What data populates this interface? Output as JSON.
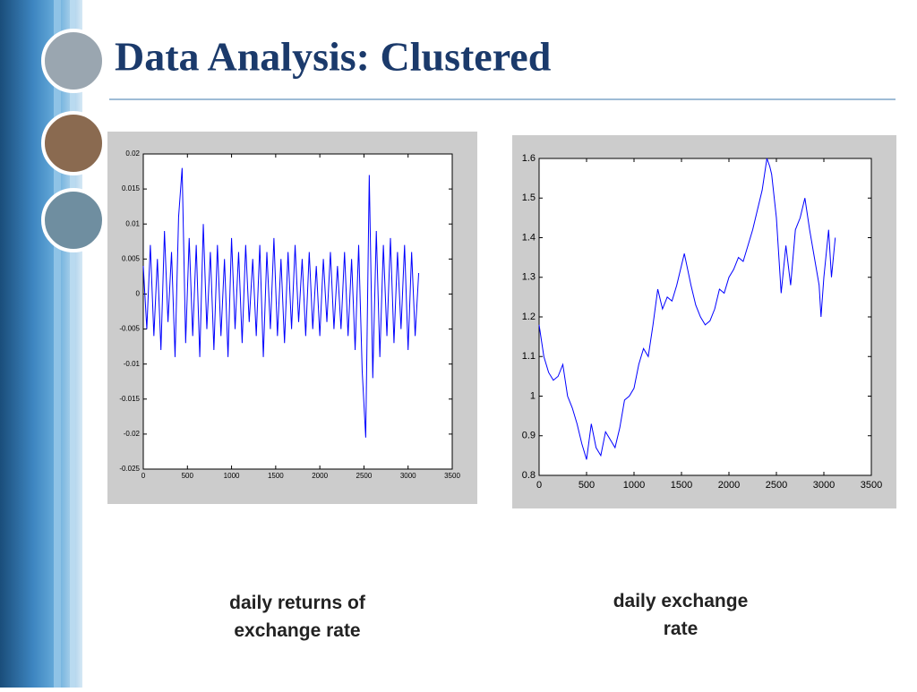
{
  "title": "Data Analysis: Clustered",
  "chart_data": [
    {
      "type": "line",
      "caption": "daily returns of exchange rate",
      "x": [
        0,
        40,
        80,
        120,
        160,
        200,
        240,
        280,
        320,
        360,
        400,
        440,
        480,
        520,
        560,
        600,
        640,
        680,
        720,
        760,
        800,
        840,
        880,
        920,
        960,
        1000,
        1040,
        1080,
        1120,
        1160,
        1200,
        1240,
        1280,
        1320,
        1360,
        1400,
        1440,
        1480,
        1520,
        1560,
        1600,
        1640,
        1680,
        1720,
        1760,
        1800,
        1840,
        1880,
        1920,
        1960,
        2000,
        2040,
        2080,
        2120,
        2160,
        2200,
        2240,
        2280,
        2320,
        2360,
        2400,
        2440,
        2480,
        2520,
        2560,
        2600,
        2640,
        2680,
        2720,
        2760,
        2800,
        2840,
        2880,
        2920,
        2960,
        3000,
        3040,
        3080,
        3120
      ],
      "series": [
        {
          "color": "#0000ff",
          "values": [
            0.004,
            -0.005,
            0.007,
            -0.006,
            0.005,
            -0.008,
            0.009,
            -0.004,
            0.006,
            -0.009,
            0.011,
            0.018,
            -0.007,
            0.008,
            -0.006,
            0.007,
            -0.009,
            0.01,
            -0.005,
            0.006,
            -0.008,
            0.007,
            -0.006,
            0.005,
            -0.009,
            0.008,
            -0.005,
            0.006,
            -0.007,
            0.007,
            -0.004,
            0.005,
            -0.006,
            0.007,
            -0.009,
            0.006,
            -0.005,
            0.008,
            -0.006,
            0.005,
            -0.007,
            0.006,
            -0.005,
            0.007,
            -0.004,
            0.005,
            -0.006,
            0.006,
            -0.005,
            0.004,
            -0.006,
            0.005,
            -0.004,
            0.006,
            -0.005,
            0.004,
            -0.005,
            0.006,
            -0.006,
            0.005,
            -0.008,
            0.007,
            -0.011,
            -0.0205,
            0.017,
            -0.012,
            0.009,
            -0.009,
            0.007,
            -0.006,
            0.008,
            -0.007,
            0.006,
            -0.005,
            0.007,
            -0.008,
            0.006,
            -0.006,
            0.003
          ]
        }
      ],
      "xlim": [
        0,
        3500
      ],
      "xticks": [
        0,
        500,
        1000,
        1500,
        2000,
        2500,
        3000,
        3500
      ],
      "ylim": [
        -0.025,
        0.02
      ],
      "yticks": [
        -0.025,
        -0.02,
        -0.015,
        -0.01,
        -0.005,
        0,
        0.005,
        0.01,
        0.015,
        0.02
      ]
    },
    {
      "type": "line",
      "caption": "daily exchange rate",
      "x": [
        0,
        50,
        100,
        150,
        200,
        250,
        300,
        350,
        400,
        450,
        500,
        550,
        600,
        650,
        700,
        750,
        800,
        850,
        900,
        950,
        1000,
        1050,
        1100,
        1150,
        1200,
        1250,
        1300,
        1350,
        1400,
        1450,
        1500,
        1530,
        1600,
        1650,
        1700,
        1750,
        1800,
        1850,
        1900,
        1950,
        2000,
        2050,
        2100,
        2150,
        2200,
        2250,
        2300,
        2350,
        2400,
        2430,
        2450,
        2500,
        2550,
        2600,
        2650,
        2700,
        2750,
        2800,
        2850,
        2900,
        2950,
        2970,
        3000,
        3050,
        3080,
        3120
      ],
      "series": [
        {
          "color": "#0000ff",
          "values": [
            1.18,
            1.1,
            1.06,
            1.04,
            1.05,
            1.08,
            1.0,
            0.97,
            0.93,
            0.88,
            0.84,
            0.93,
            0.87,
            0.85,
            0.91,
            0.89,
            0.87,
            0.92,
            0.99,
            1.0,
            1.02,
            1.08,
            1.12,
            1.1,
            1.18,
            1.27,
            1.22,
            1.25,
            1.24,
            1.28,
            1.33,
            1.36,
            1.28,
            1.23,
            1.2,
            1.18,
            1.19,
            1.22,
            1.27,
            1.26,
            1.3,
            1.32,
            1.35,
            1.34,
            1.38,
            1.42,
            1.47,
            1.52,
            1.6,
            1.58,
            1.56,
            1.45,
            1.26,
            1.38,
            1.28,
            1.42,
            1.45,
            1.5,
            1.42,
            1.35,
            1.28,
            1.2,
            1.3,
            1.42,
            1.3,
            1.4
          ]
        }
      ],
      "xlim": [
        0,
        3500
      ],
      "xticks": [
        0,
        500,
        1000,
        1500,
        2000,
        2500,
        3000,
        3500
      ],
      "ylim": [
        0.8,
        1.6
      ],
      "yticks": [
        0.8,
        0.9,
        1,
        1.1,
        1.2,
        1.3,
        1.4,
        1.5,
        1.6
      ]
    }
  ]
}
